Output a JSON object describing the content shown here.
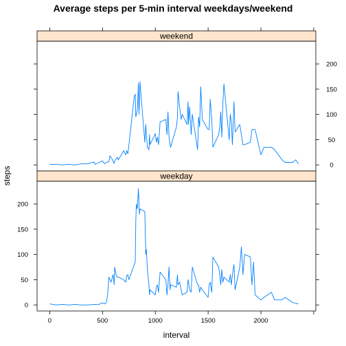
{
  "chart_data": {
    "type": "line",
    "title": "Average steps per 5-min interval weekdays/weekend",
    "xlabel": "interval",
    "ylabel": "steps",
    "xlim": [
      -120,
      2520
    ],
    "ylim": [
      -12,
      245
    ],
    "xticks": [
      0,
      500,
      1000,
      1500,
      2000
    ],
    "yticks": [
      0,
      50,
      100,
      150,
      200
    ],
    "color": "#0080ff",
    "strip_color": "#ffe5cc",
    "panels": [
      {
        "name": "weekend",
        "x": [
          0,
          60,
          120,
          180,
          240,
          300,
          360,
          420,
          430,
          450,
          470,
          500,
          520,
          530,
          550,
          560,
          570,
          590,
          610,
          615,
          630,
          640,
          650,
          700,
          720,
          730,
          740,
          750,
          800,
          810,
          815,
          820,
          830,
          840,
          845,
          850,
          855,
          900,
          910,
          915,
          925,
          940,
          945,
          950,
          1000,
          1010,
          1020,
          1030,
          1045,
          1100,
          1110,
          1120,
          1130,
          1140,
          1145,
          1200,
          1210,
          1215,
          1230,
          1245,
          1255,
          1300,
          1310,
          1315,
          1325,
          1340,
          1350,
          1400,
          1410,
          1420,
          1430,
          1445,
          1500,
          1510,
          1520,
          1535,
          1545,
          1600,
          1610,
          1620,
          1630,
          1640,
          1650,
          1700,
          1710,
          1720,
          1730,
          1745,
          1755,
          1800,
          1815,
          1830,
          1845,
          1900,
          1915,
          1930,
          1945,
          2000,
          2030,
          2100,
          2130,
          2200,
          2230,
          2300,
          2330,
          2355
        ],
        "y": [
          1,
          1,
          0,
          1,
          0,
          2,
          2,
          6,
          1,
          3,
          5,
          8,
          2,
          4,
          6,
          6,
          18,
          12,
          3,
          8,
          12,
          15,
          10,
          28,
          20,
          28,
          22,
          40,
          135,
          140,
          95,
          100,
          110,
          162,
          100,
          130,
          165,
          45,
          80,
          60,
          35,
          30,
          60,
          40,
          62,
          45,
          55,
          40,
          85,
          90,
          60,
          105,
          55,
          40,
          35,
          75,
          95,
          145,
          115,
          90,
          100,
          80,
          125,
          80,
          115,
          60,
          100,
          30,
          95,
          75,
          155,
          90,
          70,
          70,
          130,
          90,
          35,
          60,
          75,
          105,
          55,
          125,
          160,
          50,
          100,
          85,
          40,
          125,
          65,
          80,
          60,
          40,
          40,
          45,
          70,
          70,
          70,
          20,
          35,
          35,
          30,
          10,
          5,
          5,
          10,
          2
        ]
      },
      {
        "name": "weekday",
        "x": [
          0,
          30,
          60,
          120,
          180,
          240,
          300,
          360,
          420,
          470,
          480,
          500,
          520,
          530,
          540,
          550,
          560,
          570,
          580,
          600,
          610,
          615,
          630,
          640,
          650,
          700,
          720,
          730,
          740,
          750,
          800,
          810,
          815,
          820,
          830,
          835,
          840,
          850,
          855,
          900,
          910,
          915,
          925,
          940,
          945,
          950,
          1000,
          1010,
          1020,
          1030,
          1045,
          1100,
          1110,
          1120,
          1130,
          1140,
          1145,
          1200,
          1210,
          1215,
          1230,
          1245,
          1255,
          1300,
          1310,
          1315,
          1325,
          1340,
          1350,
          1400,
          1410,
          1420,
          1430,
          1445,
          1500,
          1510,
          1520,
          1535,
          1545,
          1600,
          1610,
          1620,
          1630,
          1640,
          1650,
          1700,
          1710,
          1720,
          1730,
          1745,
          1755,
          1800,
          1815,
          1830,
          1845,
          1900,
          1915,
          1930,
          1945,
          2000,
          2030,
          2100,
          2130,
          2200,
          2230,
          2300,
          2330,
          2355
        ],
        "y": [
          2,
          1,
          0,
          1,
          0,
          1,
          0,
          0,
          1,
          1,
          3,
          4,
          2,
          3,
          8,
          25,
          55,
          50,
          45,
          60,
          40,
          75,
          58,
          55,
          55,
          50,
          45,
          58,
          60,
          50,
          80,
          85,
          165,
          200,
          190,
          210,
          230,
          180,
          190,
          185,
          100,
          110,
          70,
          40,
          20,
          30,
          20,
          35,
          40,
          25,
          65,
          50,
          20,
          40,
          75,
          30,
          40,
          35,
          60,
          40,
          45,
          30,
          20,
          25,
          50,
          45,
          30,
          25,
          75,
          40,
          40,
          25,
          35,
          30,
          15,
          40,
          45,
          25,
          95,
          75,
          60,
          40,
          70,
          45,
          55,
          45,
          60,
          40,
          60,
          80,
          30,
          75,
          115,
          60,
          100,
          95,
          40,
          85,
          20,
          10,
          15,
          25,
          10,
          10,
          15,
          5,
          3,
          2
        ]
      }
    ]
  }
}
